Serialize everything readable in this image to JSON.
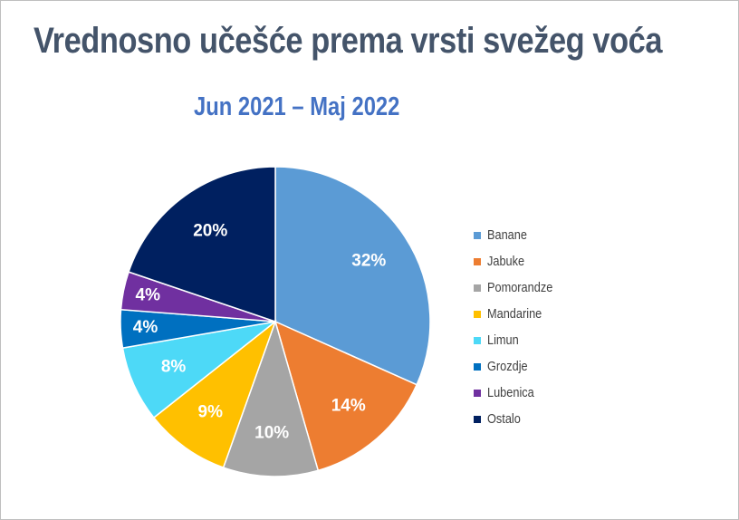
{
  "chart_data": {
    "type": "pie",
    "title": "Vrednosno učešće prema vrsti svežeg voća",
    "subtitle": "Jun 2021 – Maj 2022",
    "categories": [
      "Banane",
      "Jabuke",
      "Pomorandze",
      "Mandarine",
      "Limun",
      "Grozdje",
      "Lubenica",
      "Ostalo"
    ],
    "values": [
      32,
      14,
      10,
      9,
      8,
      4,
      4,
      20
    ],
    "labels": [
      "32%",
      "14%",
      "10%",
      "9%",
      "8%",
      "4%",
      "4%",
      "20%"
    ],
    "colors": [
      "#5b9bd5",
      "#ed7d31",
      "#a5a5a5",
      "#ffc000",
      "#4dd9f7",
      "#0070c0",
      "#7030a0",
      "#002060"
    ],
    "label_colors": [
      "#ffffff",
      "#ffffff",
      "#ffffff",
      "#ffffff",
      "#ffffff",
      "#ffffff",
      "#ffffff",
      "#ffffff"
    ],
    "legend_position": "right"
  }
}
